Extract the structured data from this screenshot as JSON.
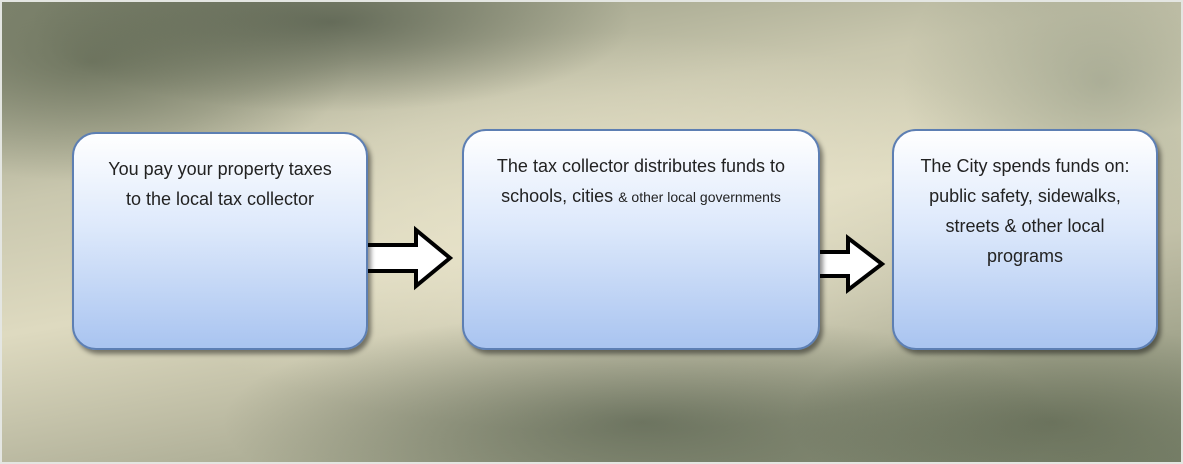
{
  "nodes": [
    {
      "text": "You pay your property taxes to the local tax collector"
    },
    {
      "text": "The tax collector distributes funds to schools, cities",
      "small_text": "& other  local governments"
    },
    {
      "text": "The City spends funds on: public safety, sidewalks, streets & other local programs"
    }
  ]
}
